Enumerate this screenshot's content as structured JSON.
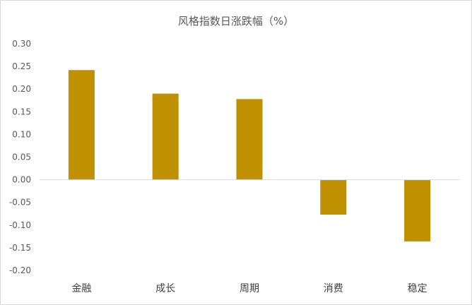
{
  "chart_data": {
    "type": "bar",
    "title": "风格指数日涨跌幅（%）",
    "xlabel": "",
    "ylabel": "",
    "categories": [
      "金融",
      "成长",
      "周期",
      "消费",
      "稳定"
    ],
    "values": [
      0.242,
      0.19,
      0.178,
      -0.077,
      -0.136
    ],
    "ylim": [
      -0.2,
      0.3
    ],
    "yticks": [
      "0.30",
      "0.25",
      "0.20",
      "0.15",
      "0.10",
      "0.05",
      "0.00",
      "-0.05",
      "-0.10",
      "-0.15",
      "-0.20"
    ],
    "bar_color": "#bf9000",
    "axis_color": "#d9d9d9",
    "grid": false,
    "legend": "none"
  }
}
